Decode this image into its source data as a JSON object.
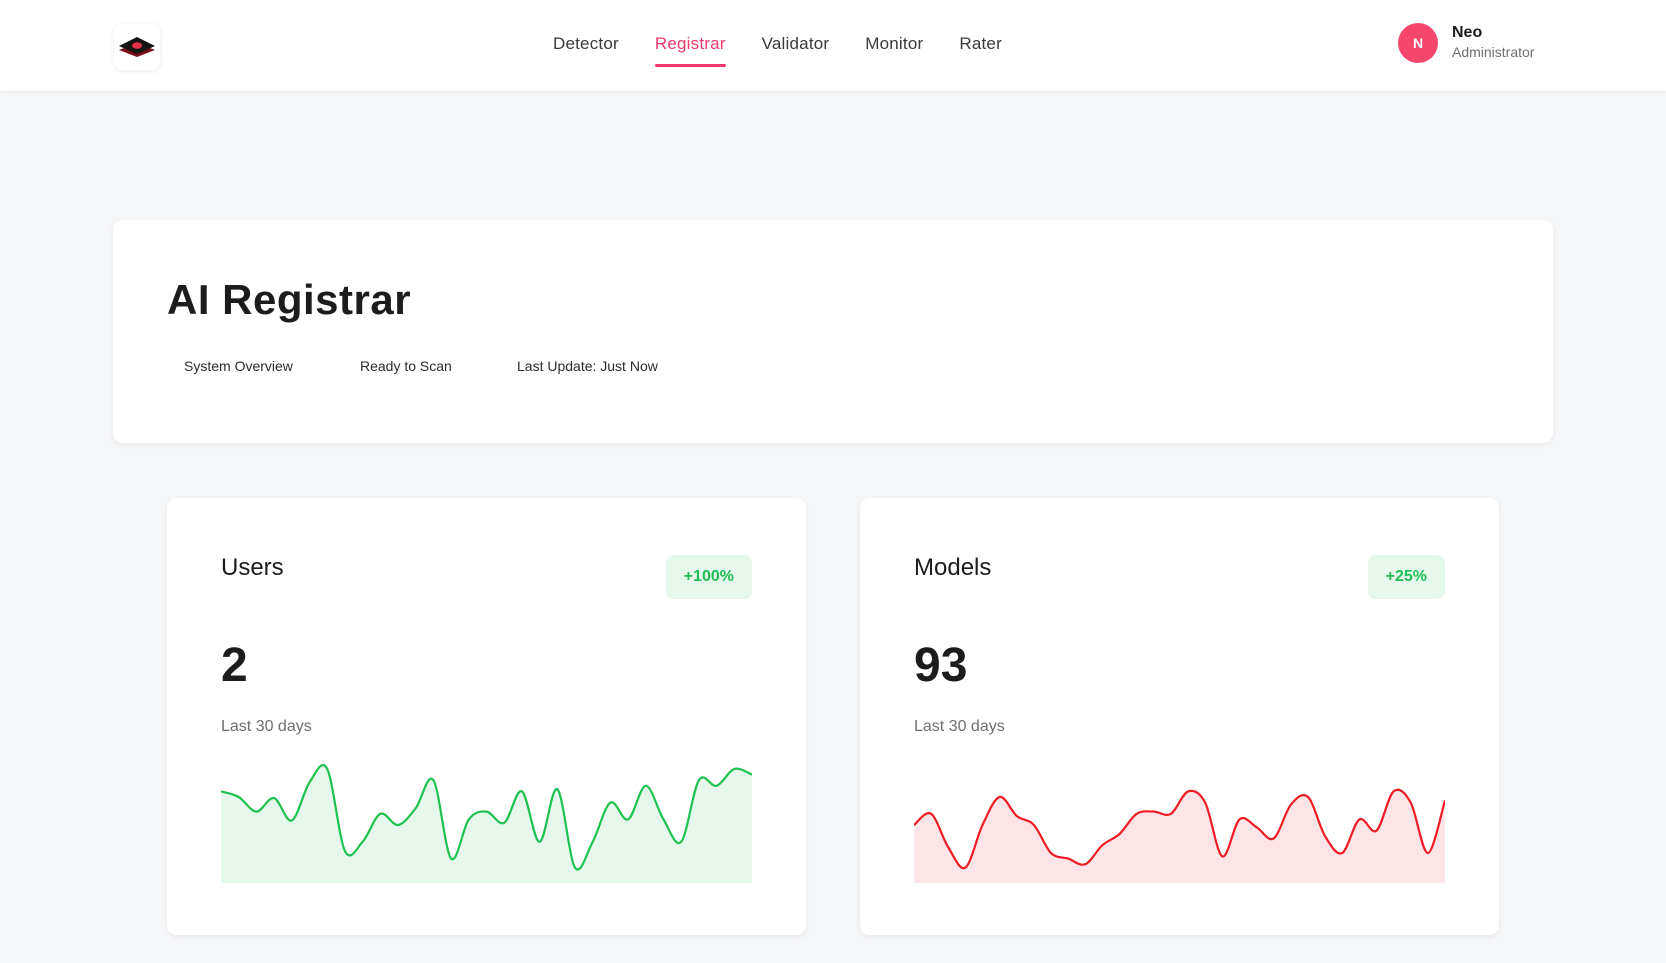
{
  "nav": {
    "items": [
      {
        "label": "Detector",
        "active": false
      },
      {
        "label": "Registrar",
        "active": true
      },
      {
        "label": "Validator",
        "active": false
      },
      {
        "label": "Monitor",
        "active": false
      },
      {
        "label": "Rater",
        "active": false
      }
    ],
    "accent": "#f0386b"
  },
  "user": {
    "initial": "N",
    "name": "Neo",
    "role": "Administrator",
    "avatar_color": "#f5476b"
  },
  "header": {
    "title": "AI Registrar",
    "meta": [
      "System Overview",
      "Ready to Scan",
      "Last Update: Just Now"
    ]
  },
  "stats": [
    {
      "label": "Users",
      "value": "2",
      "change": "+100%",
      "period": "Last 30 days",
      "line_color": "#1ec24f",
      "fill_color": "#e6f8ec"
    },
    {
      "label": "Models",
      "value": "93",
      "change": "+25%",
      "period": "Last 30 days",
      "line_color": "#ee1c25",
      "fill_color": "#fde4e6"
    }
  ],
  "chart_data": [
    {
      "type": "area",
      "series": [
        {
          "values": [
            0.8,
            0.75,
            0.62,
            0.74,
            0.54,
            0.88,
            1.0,
            0.27,
            0.35,
            0.6,
            0.5,
            0.65,
            0.9,
            0.2,
            0.55,
            0.62,
            0.52,
            0.8,
            0.35,
            0.82,
            0.12,
            0.35,
            0.7,
            0.55,
            0.85,
            0.55,
            0.35,
            0.9,
            0.85,
            1.0,
            0.95
          ]
        }
      ],
      "ylim": [
        0,
        1
      ]
    },
    {
      "type": "area",
      "series": [
        {
          "values": [
            0.5,
            0.6,
            0.3,
            0.12,
            0.5,
            0.75,
            0.58,
            0.5,
            0.25,
            0.2,
            0.15,
            0.32,
            0.42,
            0.6,
            0.62,
            0.6,
            0.8,
            0.7,
            0.22,
            0.55,
            0.48,
            0.38,
            0.68,
            0.75,
            0.4,
            0.25,
            0.55,
            0.45,
            0.8,
            0.7,
            0.25,
            0.72
          ]
        }
      ],
      "ylim": [
        0,
        1
      ]
    }
  ]
}
